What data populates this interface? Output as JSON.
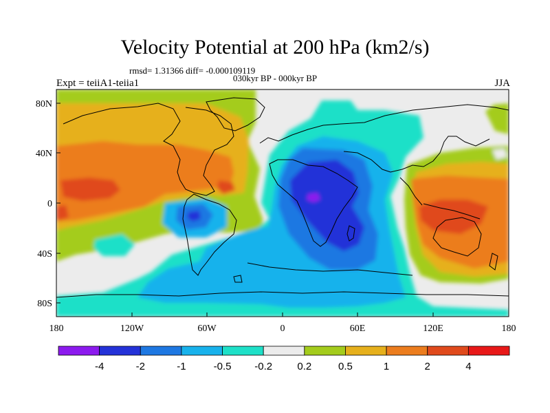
{
  "title": "Velocity Potential at 200 hPa (km2/s)",
  "stats": "rmsd= 1.31366 diff= -0.000109119",
  "period": "030kyr BP - 000kyr BP",
  "experiment": "Expt = teiiA1-teiia1",
  "season": "JJA",
  "y_axis_labels": [
    "80N",
    "40N",
    "0",
    "40S",
    "80S"
  ],
  "x_axis_labels": [
    "180",
    "120W",
    "60W",
    "0",
    "60E",
    "120E",
    "180"
  ],
  "colorbar": {
    "labels": [
      "-4",
      "-2",
      "-1",
      "-0.5",
      "-0.2",
      "0.2",
      "0.5",
      "1",
      "2",
      "4"
    ],
    "colors": [
      "#8c1aee",
      "#2432d8",
      "#1e78e2",
      "#18b2ec",
      "#1ee0c8",
      "#ececec",
      "#a4cc1c",
      "#e6b01c",
      "#ec7d1e",
      "#e04a1c",
      "#e81818"
    ]
  }
}
